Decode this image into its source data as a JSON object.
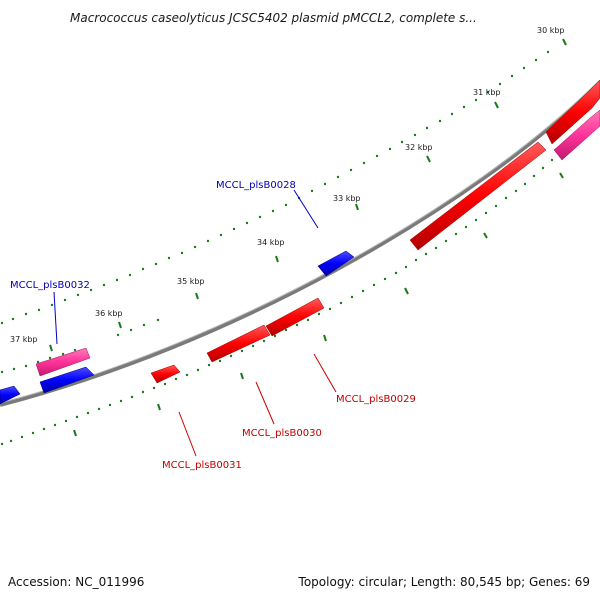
{
  "title": "Macrococcus caseolyticus JCSC5402 plasmid pMCCL2, complete s...",
  "footer": {
    "accession": "Accession: NC_011996",
    "topology": "Topology: circular; Length: 80,545 bp; Genes: 69"
  },
  "ticks": [
    "30 kbp",
    "31 kbp",
    "32 kbp",
    "33 kbp",
    "34 kbp",
    "35 kbp",
    "36 kbp",
    "37 kbp"
  ],
  "gene_labels": {
    "b0028": "MCCL_plsB0028",
    "b0029": "MCCL_plsB0029",
    "b0030": "MCCL_plsB0030",
    "b0031": "MCCL_plsB0031",
    "b0032": "MCCL_plsB0032"
  },
  "colors": {
    "forward_gene": "#ff0000",
    "reverse_gene": "#0000ff",
    "pink_feature": "#ff3399",
    "backbone": "#808080",
    "tick_dots": "#1a7a1a"
  }
}
